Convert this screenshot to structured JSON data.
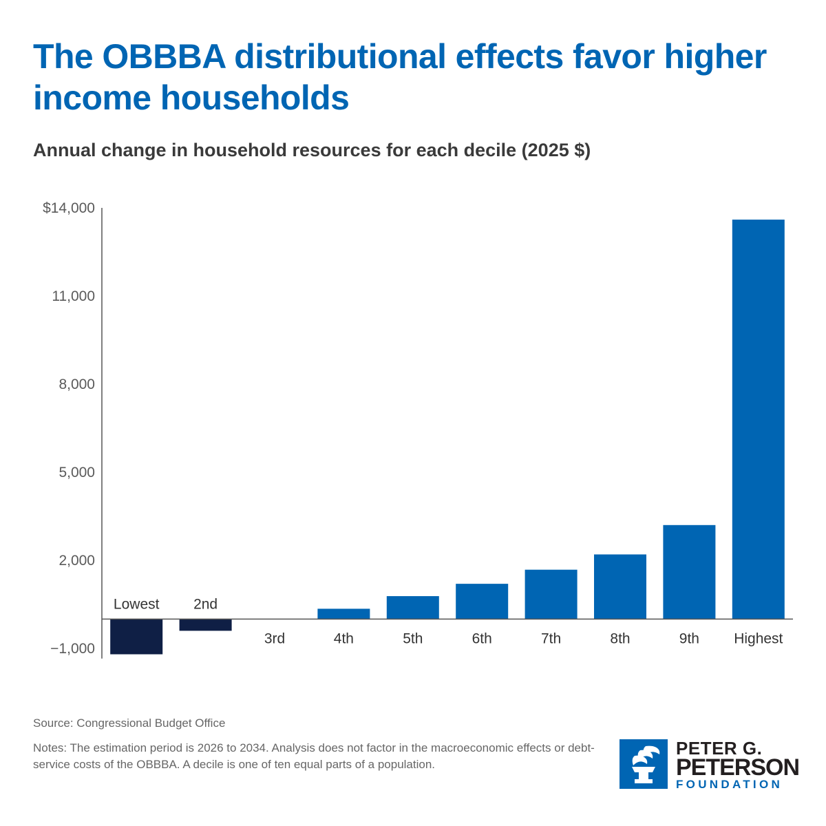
{
  "header": {
    "title": "The OBBBA distributional effects favor higher income households",
    "subtitle": "Annual change in household resources for each decile (2025 $)"
  },
  "chart_data": {
    "type": "bar",
    "title": "The OBBBA distributional effects favor higher income households",
    "subtitle": "Annual change in household resources for each decile (2025 $)",
    "xlabel": "",
    "ylabel": "",
    "categories": [
      "Lowest",
      "2nd",
      "3rd",
      "4th",
      "5th",
      "6th",
      "7th",
      "8th",
      "9th",
      "Highest"
    ],
    "values": [
      -1200,
      -400,
      0,
      350,
      780,
      1200,
      1680,
      2200,
      3200,
      13600
    ],
    "ylim": [
      -1300,
      14000
    ],
    "yticks": [
      14000,
      11000,
      8000,
      5000,
      2000,
      -1000
    ],
    "ytick_labels": [
      "$14,000",
      "11,000",
      "8,000",
      "5,000",
      "2,000",
      "−1,000"
    ],
    "grid": false,
    "legend": "none",
    "colors": {
      "positive": "#0065b3",
      "negative": "#0f1f45",
      "axis": "#555555"
    }
  },
  "footer": {
    "source": "Source: Congressional Budget Office",
    "notes": "Notes: The estimation period is 2026 to 2034. Analysis does not factor in the macroeconomic effects or debt-service costs of the OBBBA. A decile is one of ten equal parts of a population."
  },
  "logo": {
    "line1": "PETER G.",
    "line2": "PETERSON",
    "line3": "FOUNDATION",
    "icon": "torch-icon",
    "color": "#0065b3"
  }
}
